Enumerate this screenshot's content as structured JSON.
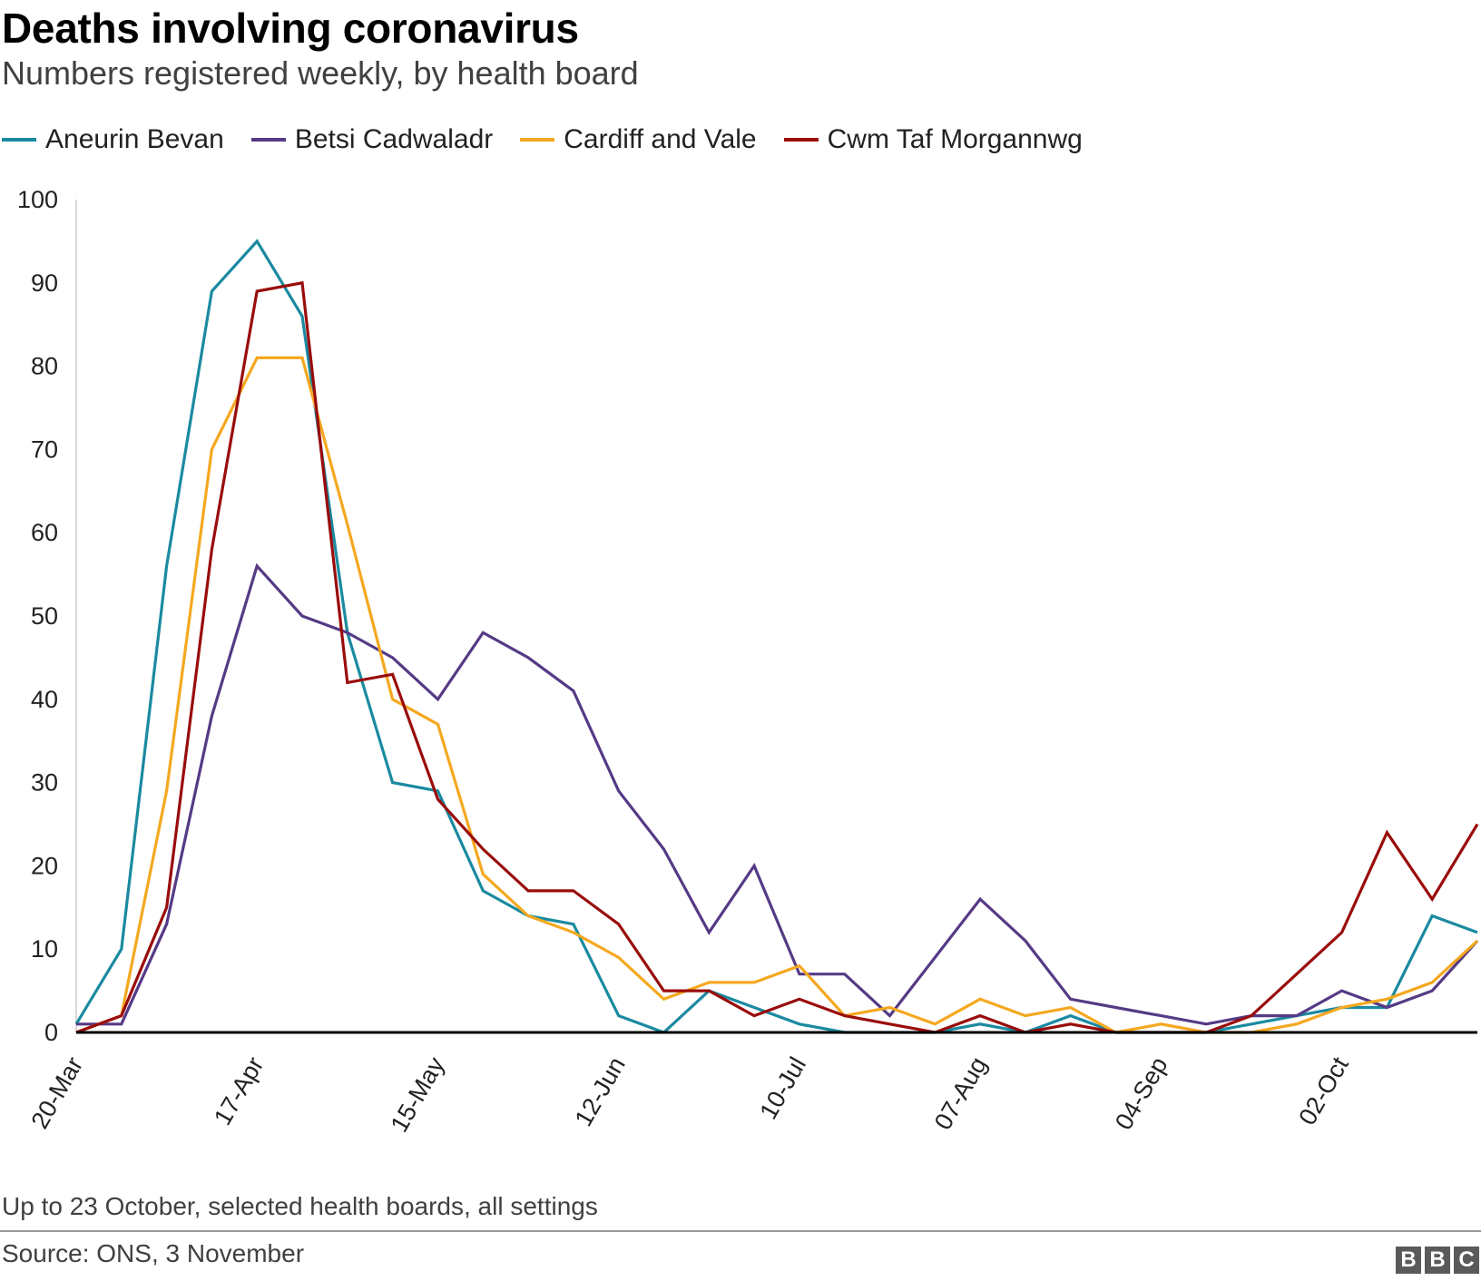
{
  "header": {
    "title": "Deaths involving coronavirus",
    "subtitle": "Numbers registered weekly, by health board"
  },
  "legend": [
    {
      "label": "Aneurin Bevan",
      "color": "#1a8aa0"
    },
    {
      "label": "Betsi Cadwaladr",
      "color": "#553a85"
    },
    {
      "label": "Cardiff and Vale",
      "color": "#f5a81f"
    },
    {
      "label": "Cwm Taf Morgannwg",
      "color": "#9a0c0c"
    }
  ],
  "footer": {
    "note": "Up to 23 October, selected health boards, all settings",
    "source": "Source: ONS, 3 November",
    "logo": [
      "B",
      "B",
      "C"
    ]
  },
  "chart_data": {
    "type": "line",
    "title": "Deaths involving coronavirus",
    "subtitle": "Numbers registered weekly, by health board",
    "xlabel": "",
    "ylabel": "",
    "ylim": [
      0,
      100
    ],
    "yticks": [
      0,
      10,
      20,
      30,
      40,
      50,
      60,
      70,
      80,
      90,
      100
    ],
    "x": [
      "20-Mar",
      "27-Mar",
      "03-Apr",
      "10-Apr",
      "17-Apr",
      "24-Apr",
      "01-May",
      "08-May",
      "15-May",
      "22-May",
      "29-May",
      "05-Jun",
      "12-Jun",
      "19-Jun",
      "26-Jun",
      "03-Jul",
      "10-Jul",
      "17-Jul",
      "24-Jul",
      "31-Jul",
      "07-Aug",
      "14-Aug",
      "21-Aug",
      "28-Aug",
      "04-Sep",
      "11-Sep",
      "18-Sep",
      "25-Sep",
      "02-Oct",
      "09-Oct",
      "16-Oct",
      "23-Oct"
    ],
    "xtick_labels": [
      "20-Mar",
      "17-Apr",
      "15-May",
      "12-Jun",
      "10-Jul",
      "07-Aug",
      "04-Sep",
      "02-Oct"
    ],
    "grid": false,
    "legend_position": "top",
    "series": [
      {
        "name": "Aneurin Bevan",
        "color": "#1a8aa0",
        "values": [
          1,
          10,
          56,
          89,
          95,
          86,
          48,
          30,
          29,
          17,
          14,
          13,
          2,
          0,
          5,
          3,
          1,
          0,
          0,
          0,
          1,
          0,
          2,
          0,
          0,
          0,
          1,
          2,
          3,
          3,
          14,
          12
        ]
      },
      {
        "name": "Betsi Cadwaladr",
        "color": "#553a85",
        "values": [
          1,
          1,
          13,
          38,
          56,
          50,
          48,
          45,
          40,
          48,
          45,
          41,
          29,
          22,
          12,
          20,
          7,
          7,
          2,
          9,
          16,
          11,
          4,
          3,
          2,
          1,
          2,
          2,
          5,
          3,
          5,
          11
        ]
      },
      {
        "name": "Cardiff and Vale",
        "color": "#f5a81f",
        "values": [
          0,
          2,
          29,
          70,
          81,
          81,
          61,
          40,
          37,
          19,
          14,
          12,
          9,
          4,
          6,
          6,
          8,
          2,
          3,
          1,
          4,
          2,
          3,
          0,
          1,
          0,
          0,
          1,
          3,
          4,
          6,
          11
        ]
      },
      {
        "name": "Cwm Taf Morgannwg",
        "color": "#9a0c0c",
        "values": [
          0,
          2,
          15,
          58,
          89,
          90,
          42,
          43,
          28,
          22,
          17,
          17,
          13,
          5,
          5,
          2,
          4,
          2,
          1,
          0,
          2,
          0,
          1,
          0,
          0,
          0,
          2,
          7,
          12,
          24,
          16,
          25
        ]
      }
    ]
  }
}
